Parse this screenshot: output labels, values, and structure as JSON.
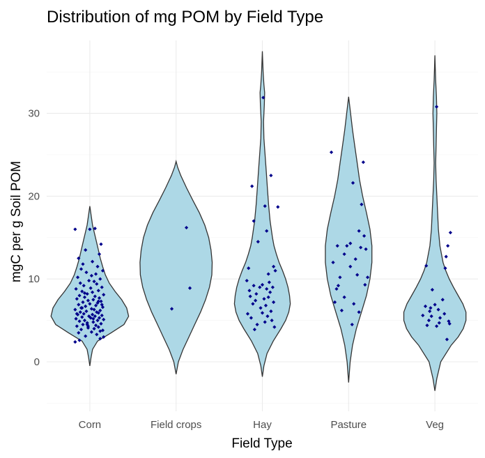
{
  "chart_data": {
    "type": "violin",
    "title": "Distribution of mg POM by Field Type",
    "xlabel": "Field Type",
    "ylabel": "mgC per g Soil POM",
    "categories": [
      "Corn",
      "Field crops",
      "Hay",
      "Pasture",
      "Veg"
    ],
    "yticks": [
      0,
      10,
      20,
      30
    ],
    "ylim": [
      -5,
      38
    ],
    "grid": true,
    "colors": {
      "fill": "#add8e6",
      "outline": "#333333",
      "points": "#00008b"
    },
    "violins": [
      {
        "category": "Corn",
        "profile": [
          [
            -0.5,
            0
          ],
          [
            0.5,
            0.03
          ],
          [
            1.5,
            0.07
          ],
          [
            2.5,
            0.2
          ],
          [
            3.5,
            0.55
          ],
          [
            4.5,
            0.88
          ],
          [
            5.5,
            1.0
          ],
          [
            6.5,
            0.95
          ],
          [
            7.5,
            0.82
          ],
          [
            8.5,
            0.65
          ],
          [
            9.5,
            0.5
          ],
          [
            10.5,
            0.4
          ],
          [
            11.5,
            0.33
          ],
          [
            12.5,
            0.27
          ],
          [
            13.5,
            0.22
          ],
          [
            14.5,
            0.17
          ],
          [
            15.5,
            0.12
          ],
          [
            16.5,
            0.07
          ],
          [
            17.5,
            0.04
          ],
          [
            18.8,
            0
          ]
        ]
      },
      {
        "category": "Field crops",
        "profile": [
          [
            -1.5,
            0
          ],
          [
            0,
            0.06
          ],
          [
            1.5,
            0.18
          ],
          [
            3,
            0.33
          ],
          [
            4.5,
            0.48
          ],
          [
            6,
            0.63
          ],
          [
            7.5,
            0.76
          ],
          [
            9,
            0.86
          ],
          [
            10.5,
            0.92
          ],
          [
            12,
            0.93
          ],
          [
            13.5,
            0.9
          ],
          [
            15,
            0.84
          ],
          [
            16.5,
            0.74
          ],
          [
            18,
            0.6
          ],
          [
            19.5,
            0.43
          ],
          [
            21,
            0.27
          ],
          [
            22.5,
            0.12
          ],
          [
            23.5,
            0.04
          ],
          [
            24.2,
            0
          ]
        ]
      },
      {
        "category": "Hay",
        "profile": [
          [
            -1.8,
            0
          ],
          [
            -0.5,
            0.04
          ],
          [
            1,
            0.12
          ],
          [
            2.5,
            0.28
          ],
          [
            4,
            0.48
          ],
          [
            5,
            0.6
          ],
          [
            6,
            0.68
          ],
          [
            7,
            0.72
          ],
          [
            8,
            0.7
          ],
          [
            9,
            0.66
          ],
          [
            10,
            0.6
          ],
          [
            11,
            0.52
          ],
          [
            12,
            0.43
          ],
          [
            13,
            0.36
          ],
          [
            14,
            0.3
          ],
          [
            15,
            0.26
          ],
          [
            17,
            0.2
          ],
          [
            19,
            0.16
          ],
          [
            21,
            0.13
          ],
          [
            23,
            0.1
          ],
          [
            25,
            0.07
          ],
          [
            27,
            0.04
          ],
          [
            29,
            0.03
          ],
          [
            31,
            0.05
          ],
          [
            32.5,
            0.06
          ],
          [
            33.5,
            0.04
          ],
          [
            35,
            0.02
          ],
          [
            37.5,
            0
          ]
        ]
      },
      {
        "category": "Pasture",
        "profile": [
          [
            -2.5,
            0
          ],
          [
            0,
            0.04
          ],
          [
            2,
            0.1
          ],
          [
            4,
            0.2
          ],
          [
            6,
            0.33
          ],
          [
            8,
            0.46
          ],
          [
            10,
            0.55
          ],
          [
            12,
            0.6
          ],
          [
            14,
            0.6
          ],
          [
            16,
            0.55
          ],
          [
            18,
            0.46
          ],
          [
            20,
            0.36
          ],
          [
            22,
            0.28
          ],
          [
            24,
            0.22
          ],
          [
            26,
            0.16
          ],
          [
            28,
            0.1
          ],
          [
            30,
            0.05
          ],
          [
            32,
            0
          ]
        ]
      },
      {
        "category": "Veg",
        "profile": [
          [
            -3.5,
            0
          ],
          [
            -2,
            0.05
          ],
          [
            0,
            0.15
          ],
          [
            2,
            0.42
          ],
          [
            3,
            0.6
          ],
          [
            4,
            0.73
          ],
          [
            5,
            0.8
          ],
          [
            6,
            0.8
          ],
          [
            7,
            0.72
          ],
          [
            8,
            0.6
          ],
          [
            9,
            0.48
          ],
          [
            10,
            0.37
          ],
          [
            11,
            0.28
          ],
          [
            12,
            0.21
          ],
          [
            14,
            0.13
          ],
          [
            16,
            0.09
          ],
          [
            18,
            0.07
          ],
          [
            20,
            0.05
          ],
          [
            22,
            0.03
          ],
          [
            24,
            0.02
          ],
          [
            26,
            0.03
          ],
          [
            28,
            0.04
          ],
          [
            30,
            0.05
          ],
          [
            32,
            0.04
          ],
          [
            34,
            0.02
          ],
          [
            37,
            0
          ]
        ]
      }
    ],
    "points": [
      {
        "category": "Corn",
        "x_jitter": [
          -0.17,
          0.12,
          -0.05,
          0.08,
          -0.13,
          0.02,
          0.15,
          -0.1,
          0.05,
          -0.02,
          0.1,
          -0.15,
          0.07,
          -0.08,
          0.13,
          -0.03,
          0.04,
          -0.12,
          0.09,
          -0.06,
          0.16,
          -0.16,
          0.01,
          0.11,
          -0.09,
          0.06,
          -0.01,
          0.14,
          -0.14,
          0.03,
          -0.07,
          0.1,
          -0.11,
          0.08,
          -0.04,
          0.12,
          -0.17,
          0.05,
          0.02,
          -0.1,
          0.15,
          -0.05,
          0.07,
          -0.13,
          0.0,
          0.09,
          -0.08,
          0.13,
          -0.02,
          0.04,
          -0.15,
          0.11,
          -0.06,
          0.06,
          -0.12,
          0.16,
          -0.03,
          0.03,
          -0.09,
          0.1,
          -0.16,
          0.01,
          0.14,
          -0.07,
          0.08,
          -0.11,
          0.05,
          -0.01,
          0.12,
          -0.14,
          0.02,
          0.07,
          -0.04,
          0.15,
          -0.1,
          0.09,
          -0.08,
          0.03,
          -0.13,
          0.11,
          -0.05,
          0.13,
          -0.17,
          0.06,
          0.0,
          -0.12,
          0.16,
          -0.02,
          0.04,
          -0.09,
          0.1,
          -0.15,
          -0.03,
          0.12,
          -0.06,
          0.14
        ],
        "y": [
          2.4,
          2.8,
          3.1,
          3.3,
          3.5,
          3.6,
          3.8,
          3.9,
          4.0,
          4.1,
          4.2,
          4.3,
          4.4,
          4.5,
          4.6,
          4.7,
          4.8,
          4.9,
          5.0,
          5.0,
          5.1,
          5.2,
          5.3,
          5.3,
          5.4,
          5.5,
          5.5,
          5.6,
          5.7,
          5.7,
          5.8,
          5.9,
          6.0,
          6.0,
          6.1,
          6.2,
          6.3,
          6.3,
          6.4,
          6.5,
          6.6,
          6.7,
          6.8,
          6.9,
          7.0,
          7.1,
          7.2,
          7.3,
          7.4,
          7.5,
          7.6,
          7.7,
          7.8,
          7.9,
          8.0,
          8.1,
          8.2,
          8.4,
          8.5,
          8.6,
          8.8,
          8.9,
          9.0,
          9.2,
          9.4,
          9.5,
          9.7,
          9.8,
          10.0,
          10.2,
          10.4,
          10.6,
          10.8,
          11.0,
          11.2,
          11.5,
          11.8,
          12.1,
          12.5,
          13.0,
          13.5,
          14.2,
          16.0,
          16.1,
          16.0,
          2.6,
          3.0,
          4.3,
          5.2,
          6.5,
          7.3,
          5.8,
          4.5,
          3.7,
          8.3,
          6.9
        ]
      },
      {
        "category": "Field crops",
        "x_jitter": [
          0.12,
          0.16,
          -0.05
        ],
        "y": [
          16.2,
          8.9,
          6.4
        ]
      },
      {
        "category": "Hay",
        "x_jitter": [
          0.01,
          0.1,
          -0.12,
          0.03,
          0.18,
          -0.1,
          0.05,
          -0.05,
          0.13,
          0.15,
          -0.16,
          0.07,
          -0.18,
          0.08,
          0.0,
          -0.1,
          0.12,
          -0.03,
          0.05,
          -0.15,
          0.09,
          -0.07,
          -0.14,
          0.02,
          -0.08,
          0.13,
          -0.11,
          0.04,
          -0.02,
          0.1,
          -0.17,
          0.06,
          -0.13,
          0.11,
          0.03,
          -0.06,
          0.14,
          -0.09,
          0.0,
          0.07
        ],
        "y": [
          31.9,
          22.5,
          21.2,
          18.8,
          18.7,
          17.0,
          15.8,
          14.5,
          11.5,
          11.0,
          11.3,
          10.6,
          9.8,
          9.6,
          9.3,
          9.2,
          9.0,
          9.0,
          8.8,
          8.6,
          8.4,
          8.2,
          7.9,
          7.6,
          7.4,
          7.2,
          7.0,
          6.8,
          6.5,
          6.1,
          5.8,
          5.5,
          5.3,
          5.0,
          4.8,
          4.5,
          4.2,
          3.9,
          5.9,
          7.8
        ]
      },
      {
        "category": "Pasture",
        "x_jitter": [
          -0.2,
          0.17,
          0.05,
          0.15,
          0.12,
          0.18,
          0.02,
          -0.02,
          -0.13,
          0.2,
          -0.05,
          0.08,
          -0.18,
          0.02,
          0.1,
          -0.1,
          0.22,
          0.19,
          -0.12,
          -0.05,
          -0.16,
          0.06,
          -0.08,
          0.12,
          0.04,
          -0.14,
          0.14
        ],
        "y": [
          25.3,
          24.1,
          21.6,
          19.0,
          15.8,
          15.2,
          14.3,
          14.0,
          14.0,
          13.6,
          13.0,
          12.4,
          12.0,
          11.5,
          10.5,
          10.2,
          10.2,
          9.3,
          9.2,
          7.8,
          7.2,
          7.0,
          6.2,
          6.0,
          4.5,
          8.8,
          13.8
        ]
      },
      {
        "category": "Veg",
        "x_jitter": [
          0.02,
          0.18,
          0.15,
          -0.1,
          0.13,
          0.12,
          -0.03,
          0.09,
          -0.11,
          0.0,
          -0.05,
          0.04,
          0.11,
          -0.14,
          -0.04,
          0.06,
          -0.07,
          0.16,
          0.05,
          -0.09,
          0.02,
          0.17,
          0.14,
          -0.06
        ],
        "y": [
          30.8,
          15.6,
          14.0,
          11.6,
          12.7,
          11.3,
          8.7,
          7.5,
          6.7,
          6.9,
          6.5,
          6.3,
          5.8,
          5.6,
          5.5,
          5.3,
          5.0,
          4.9,
          4.7,
          4.4,
          4.3,
          4.6,
          2.7,
          6.1
        ]
      }
    ]
  }
}
